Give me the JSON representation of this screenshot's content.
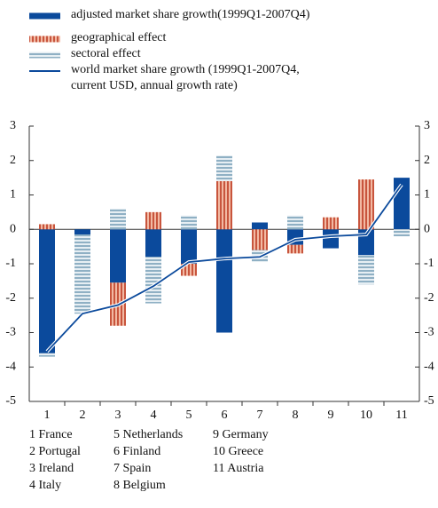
{
  "chart_data": {
    "type": "bar",
    "categories": [
      "1",
      "2",
      "3",
      "4",
      "5",
      "6",
      "7",
      "8",
      "9",
      "10",
      "11"
    ],
    "series": [
      {
        "name": "adjusted market share growth(1999Q1-2007Q4)",
        "type": "bar",
        "color": "#0b4a9c",
        "pattern": null,
        "values": [
          -3.6,
          -0.15,
          -1.55,
          -0.8,
          -1.0,
          -3.0,
          0.2,
          -0.45,
          -0.55,
          -0.75,
          1.5
        ]
      },
      {
        "name": "geographical effect",
        "type": "bar",
        "color": "#f2b9a3",
        "pattern": "vertical-stripes",
        "stripe_color": "#c8553d",
        "values": [
          0.15,
          0.0,
          -1.25,
          0.5,
          -0.35,
          1.4,
          -0.6,
          -0.25,
          0.35,
          1.45,
          0.0
        ]
      },
      {
        "name": "sectoral effect",
        "type": "bar",
        "color": "#e6eef3",
        "pattern": "horizontal-stripes",
        "stripe_color": "#8fb0c4",
        "values": [
          -0.1,
          -2.3,
          0.6,
          -1.35,
          0.4,
          0.75,
          -0.35,
          0.4,
          0.0,
          -0.85,
          -0.2
        ]
      },
      {
        "name": "world market share growth (1999Q1-2007Q4, current USD, annual growth rate)",
        "type": "line",
        "color": "#0b4a9c",
        "values": [
          -3.55,
          -2.45,
          -2.2,
          -1.65,
          -0.95,
          -0.85,
          -0.8,
          -0.3,
          -0.2,
          -0.15,
          1.3
        ]
      }
    ],
    "ylim": [
      -5,
      3
    ],
    "yticks": [
      -5,
      -4,
      -3,
      -2,
      -1,
      0,
      1,
      2,
      3
    ],
    "y2lim": [
      -5,
      3
    ],
    "y2ticks": [
      -5,
      -4,
      -3,
      -2,
      -1,
      0,
      1,
      2,
      3
    ],
    "category_names": [
      "1 France",
      "2 Portugal",
      "3 Ireland",
      "4 Italy",
      "5 Netherlands",
      "6 Finland",
      "7 Spain",
      "8 Belgium",
      "9 Germany",
      "10 Greece",
      "11 Austria"
    ]
  }
}
